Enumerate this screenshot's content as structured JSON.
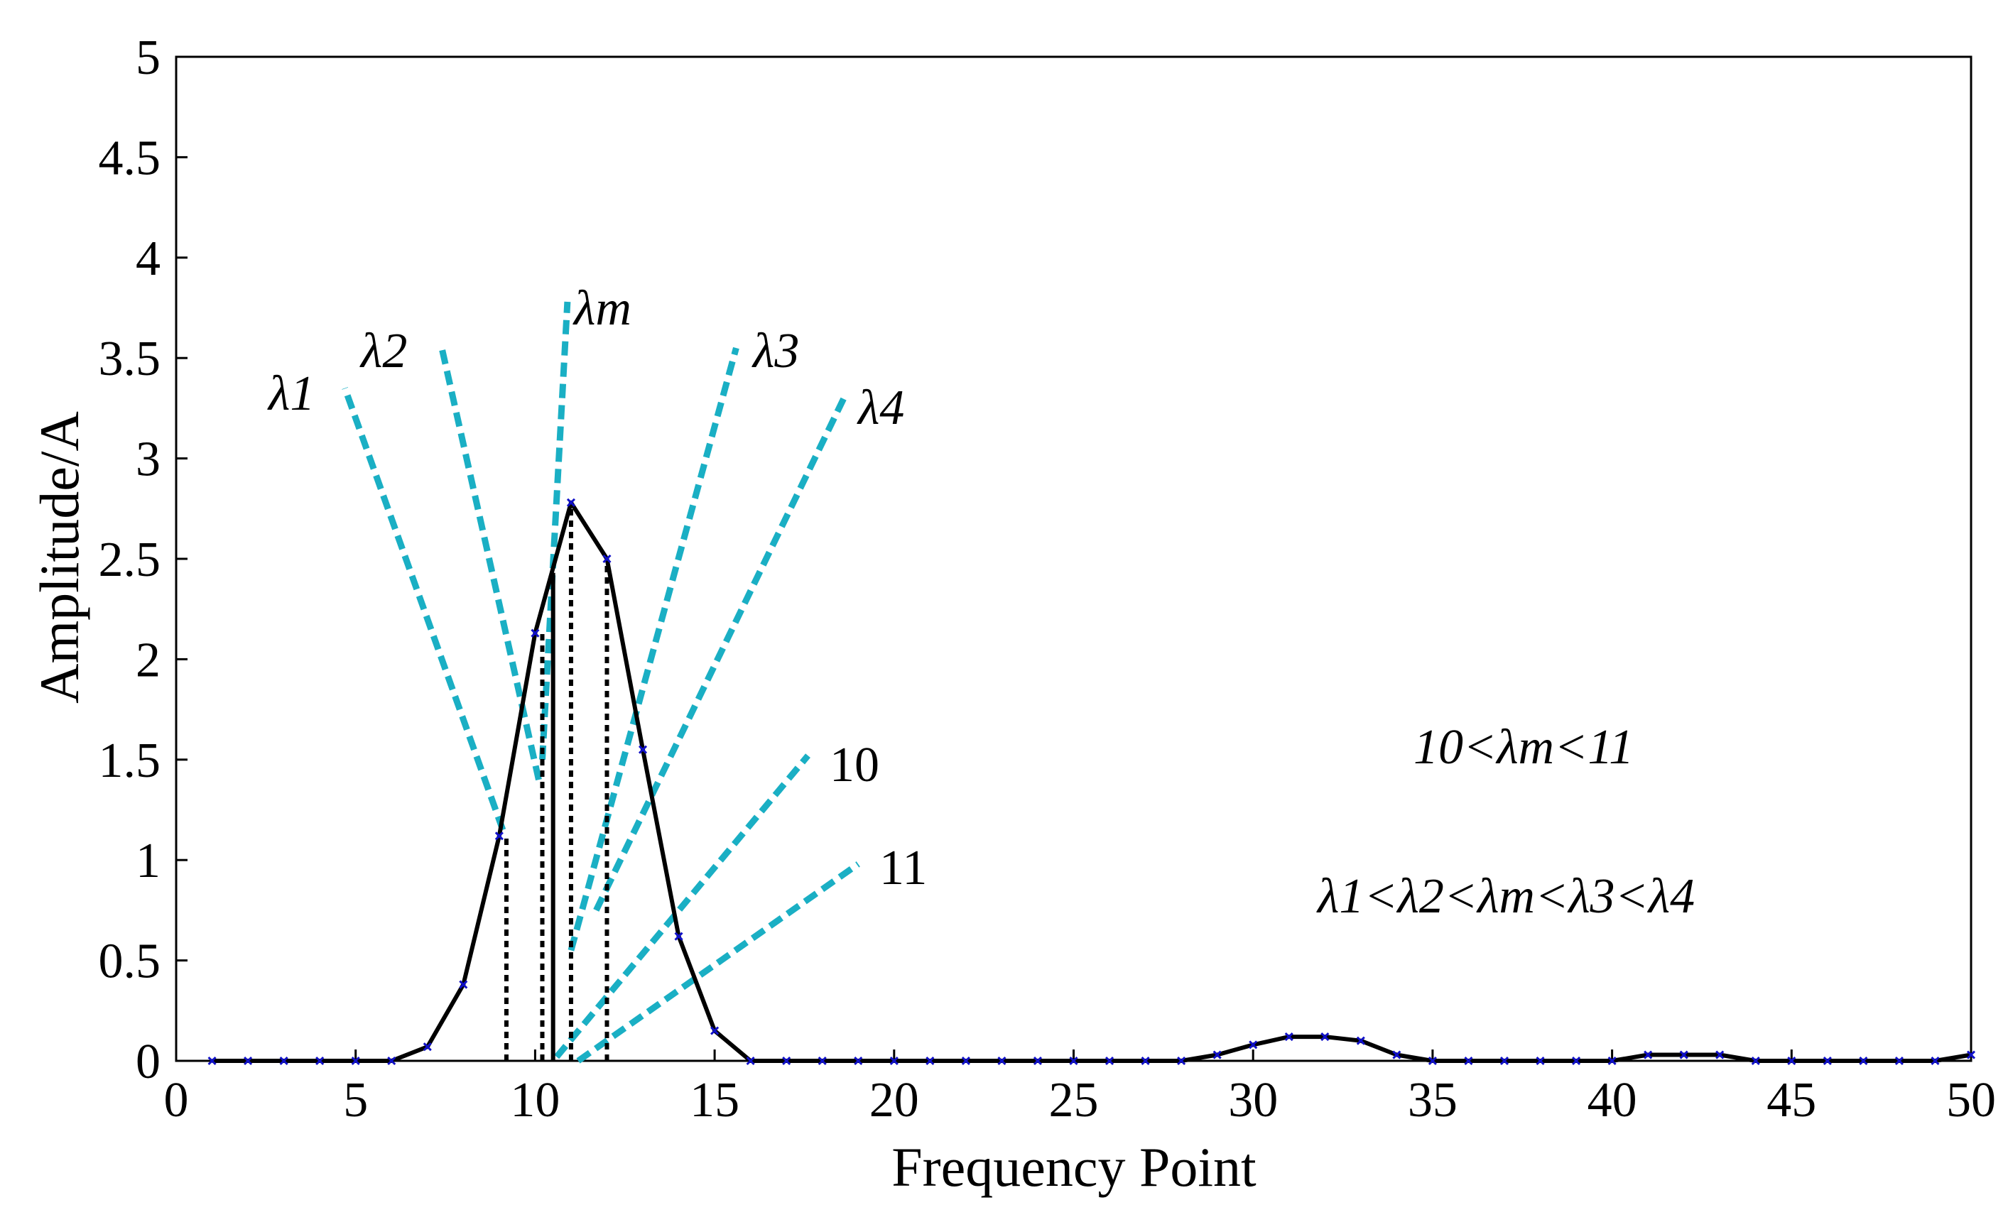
{
  "chart_data": {
    "type": "line",
    "xlabel": "Frequency Point",
    "ylabel": "Amplitude/A",
    "xlim": [
      0,
      50
    ],
    "ylim": [
      0,
      5
    ],
    "x_ticks": [
      "0",
      "5",
      "10",
      "15",
      "20",
      "25",
      "30",
      "35",
      "40",
      "45",
      "50"
    ],
    "y_ticks": [
      "0",
      "0.5",
      "1",
      "1.5",
      "2",
      "2.5",
      "3",
      "3.5",
      "4",
      "4.5",
      "5"
    ],
    "grid": false,
    "legend": "none",
    "series": [
      {
        "x": [
          1,
          2,
          3,
          4,
          5,
          6,
          7,
          8,
          9,
          10,
          11,
          12,
          13,
          14,
          15,
          16,
          17,
          18,
          19,
          20,
          21,
          22,
          23,
          24,
          25,
          26,
          27,
          28,
          29,
          30,
          31,
          32,
          33,
          34,
          35,
          36,
          37,
          38,
          39,
          40,
          41,
          42,
          43,
          44,
          45,
          46,
          47,
          48,
          49,
          50
        ],
        "y": [
          0,
          0,
          0,
          0,
          0,
          0,
          0.07,
          0.38,
          1.12,
          2.13,
          2.78,
          2.5,
          1.55,
          0.62,
          0.15,
          0,
          0,
          0,
          0,
          0,
          0,
          0,
          0,
          0,
          0,
          0,
          0,
          0,
          0.03,
          0.08,
          0.12,
          0.12,
          0.1,
          0.03,
          0,
          0,
          0,
          0,
          0,
          0,
          0.03,
          0.03,
          0.03,
          0,
          0,
          0,
          0,
          0,
          0,
          0.03
        ]
      }
    ],
    "vlines": [
      {
        "x": 9.2,
        "y": 1.12,
        "style": "dotted"
      },
      {
        "x": 10.2,
        "y": 2.13,
        "style": "dotted"
      },
      {
        "x": 10.5,
        "y": 2.43,
        "style": "solid"
      },
      {
        "x": 11.0,
        "y": 2.78,
        "style": "dotted"
      },
      {
        "x": 12.0,
        "y": 2.5,
        "style": "dotted"
      }
    ],
    "pointer_color": "#1AAFC4",
    "pointers": [
      {
        "label": "λ1",
        "x1": 9.1,
        "y1": 1.15,
        "x2": 4.7,
        "y2": 3.35
      },
      {
        "label": "λ2",
        "x1": 10.1,
        "y1": 1.4,
        "x2": 7.4,
        "y2": 3.55
      },
      {
        "label": "λm",
        "x1": 10.2,
        "y1": 1.5,
        "x2": 10.9,
        "y2": 3.78
      },
      {
        "label": "λ3",
        "x1": 11.0,
        "y1": 0.55,
        "x2": 15.6,
        "y2": 3.55
      },
      {
        "label": "λ4",
        "x1": 11.7,
        "y1": 0.75,
        "x2": 18.6,
        "y2": 3.3
      },
      {
        "label": "10",
        "x1": 10.6,
        "y1": 0.02,
        "x2": 17.6,
        "y2": 1.52
      },
      {
        "label": "11",
        "x1": 11.2,
        "y1": 0.0,
        "x2": 19.0,
        "y2": 0.98
      }
    ],
    "annotations": [
      "10<λm<11",
      "λ1<λ2<λm<λ3<λ4"
    ],
    "line_color": "#000000",
    "marker_color": "#1010C8"
  }
}
